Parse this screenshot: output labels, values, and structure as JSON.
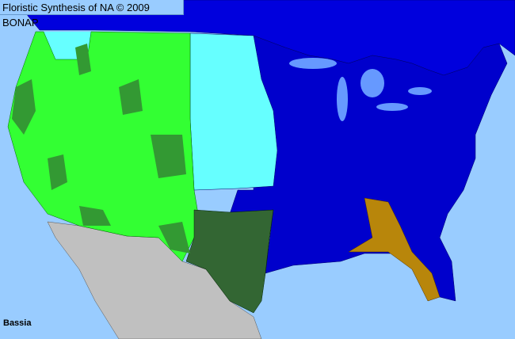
{
  "header": {
    "title": "Floristic Synthesis of NA © 2009 BONAP"
  },
  "map": {
    "taxon": "Bassia",
    "colors": {
      "ocean": "#99ccff",
      "canada": "#0000dd",
      "west_present": "#33ff33",
      "west_patches": "#339933",
      "plains": "#66ffff",
      "east": "#0000cc",
      "texas": "#336633",
      "southeast": "#b8860b",
      "mexico": "#c0c0c0",
      "lakes": "#6699ff"
    }
  }
}
